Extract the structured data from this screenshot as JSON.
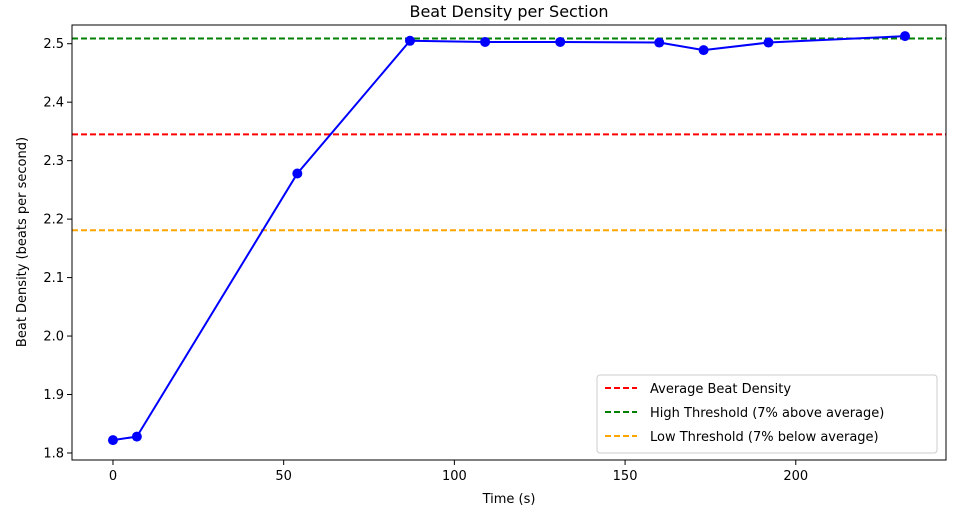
{
  "chart_data": {
    "type": "line",
    "title": "Beat Density per Section",
    "xlabel": "Time (s)",
    "ylabel": "Beat Density (beats per second)",
    "xlim": [
      -12,
      244
    ],
    "ylim": [
      1.788,
      2.532
    ],
    "xticks": [
      0,
      50,
      100,
      150,
      200
    ],
    "yticks": [
      1.8,
      1.9,
      2.0,
      2.1,
      2.2,
      2.3,
      2.4,
      2.5
    ],
    "grid": false,
    "legend_position": "lower right",
    "series": [
      {
        "color": "#0000ff",
        "marker": "circle",
        "x": [
          0,
          7,
          54,
          87,
          109,
          131,
          160,
          173,
          192,
          232
        ],
        "y": [
          1.822,
          1.828,
          2.278,
          2.505,
          2.503,
          2.503,
          2.502,
          2.489,
          2.502,
          2.513
        ]
      }
    ],
    "reference_lines": [
      {
        "name": "Average Beat Density",
        "y": 2.345,
        "color": "#ff0000",
        "style": "dashed"
      },
      {
        "name": "High Threshold (7% above average)",
        "y": 2.509,
        "color": "#008000",
        "style": "dashed"
      },
      {
        "name": "Low Threshold (7% below average)",
        "y": 2.181,
        "color": "#ffa500",
        "style": "dashed"
      }
    ]
  }
}
